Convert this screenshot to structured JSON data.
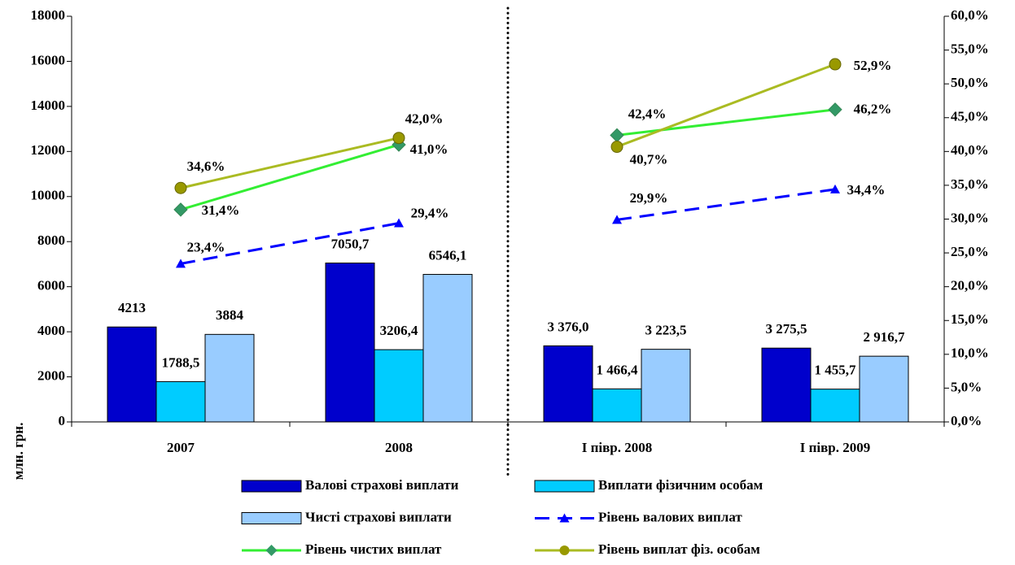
{
  "chart_data": {
    "type": "bar_line",
    "categories": [
      "2007",
      "2008",
      "І півр. 2008",
      "І півр. 2009"
    ],
    "y_label": "млн. грн.",
    "ylim": [
      0,
      18000
    ],
    "yticks": [
      0,
      2000,
      4000,
      6000,
      8000,
      10000,
      12000,
      14000,
      16000,
      18000
    ],
    "y2lim": [
      0,
      60
    ],
    "y2ticks": [
      {
        "value": 0,
        "label": "0,0%"
      },
      {
        "value": 5,
        "label": "5,0%"
      },
      {
        "value": 10,
        "label": "10,0%"
      },
      {
        "value": 15,
        "label": "15,0%"
      },
      {
        "value": 20,
        "label": "20,0%"
      },
      {
        "value": 25,
        "label": "25,0%"
      },
      {
        "value": 30,
        "label": "30,0%"
      },
      {
        "value": 35,
        "label": "35,0%"
      },
      {
        "value": 40,
        "label": "40,0%"
      },
      {
        "value": 45,
        "label": "45,0%"
      },
      {
        "value": 50,
        "label": "50,0%"
      },
      {
        "value": 55,
        "label": "55,0%"
      },
      {
        "value": 60,
        "label": "60,0%"
      }
    ],
    "divider_after_category": 1,
    "series": [
      {
        "name": "Валові страхові виплати",
        "kind": "bar",
        "color": "#0000cc",
        "values": [
          4213,
          7050.7,
          3376.0,
          3275.5
        ],
        "value_labels": [
          "4213",
          "7050,7",
          "3 376,0",
          "3 275,5"
        ]
      },
      {
        "name": "Виплати фізичним особам",
        "kind": "bar",
        "color": "#00ccff",
        "values": [
          1788.5,
          3206.4,
          1466.4,
          1455.7
        ],
        "value_labels": [
          "1788,5",
          "3206,4",
          "1 466,4",
          "1 455,7"
        ]
      },
      {
        "name": "Чисті страхові виплати",
        "kind": "bar",
        "color": "#99ccff",
        "values": [
          3884,
          6546.1,
          3223.5,
          2916.7
        ],
        "value_labels": [
          "3884",
          "6546,1",
          "3 223,5",
          "2 916,7"
        ]
      },
      {
        "name": "Рівень валових виплат",
        "kind": "line",
        "axis": "y2",
        "color": "#0000ff",
        "dashed": true,
        "marker": "triangle",
        "values": [
          23.4,
          29.4,
          29.9,
          34.4
        ],
        "value_labels": [
          "23,4%",
          "29,4%",
          "29,9%",
          "34,4%"
        ]
      },
      {
        "name": "Рівень чистих виплат",
        "kind": "line",
        "axis": "y2",
        "color": "#33ee33",
        "marker_color": "#339966",
        "marker": "diamond",
        "values": [
          31.4,
          41.0,
          42.4,
          46.2
        ],
        "value_labels": [
          "31,4%",
          "41,0%",
          "42,4%",
          "46,2%"
        ]
      },
      {
        "name": "Рівень виплат фіз. особам",
        "kind": "line",
        "axis": "y2",
        "color": "#aabb22",
        "marker_color": "#999900",
        "marker": "circle",
        "values": [
          34.6,
          42.0,
          40.7,
          52.9
        ],
        "value_labels": [
          "34,6%",
          "42,0%",
          "40,7%",
          "52,9%"
        ]
      }
    ]
  }
}
